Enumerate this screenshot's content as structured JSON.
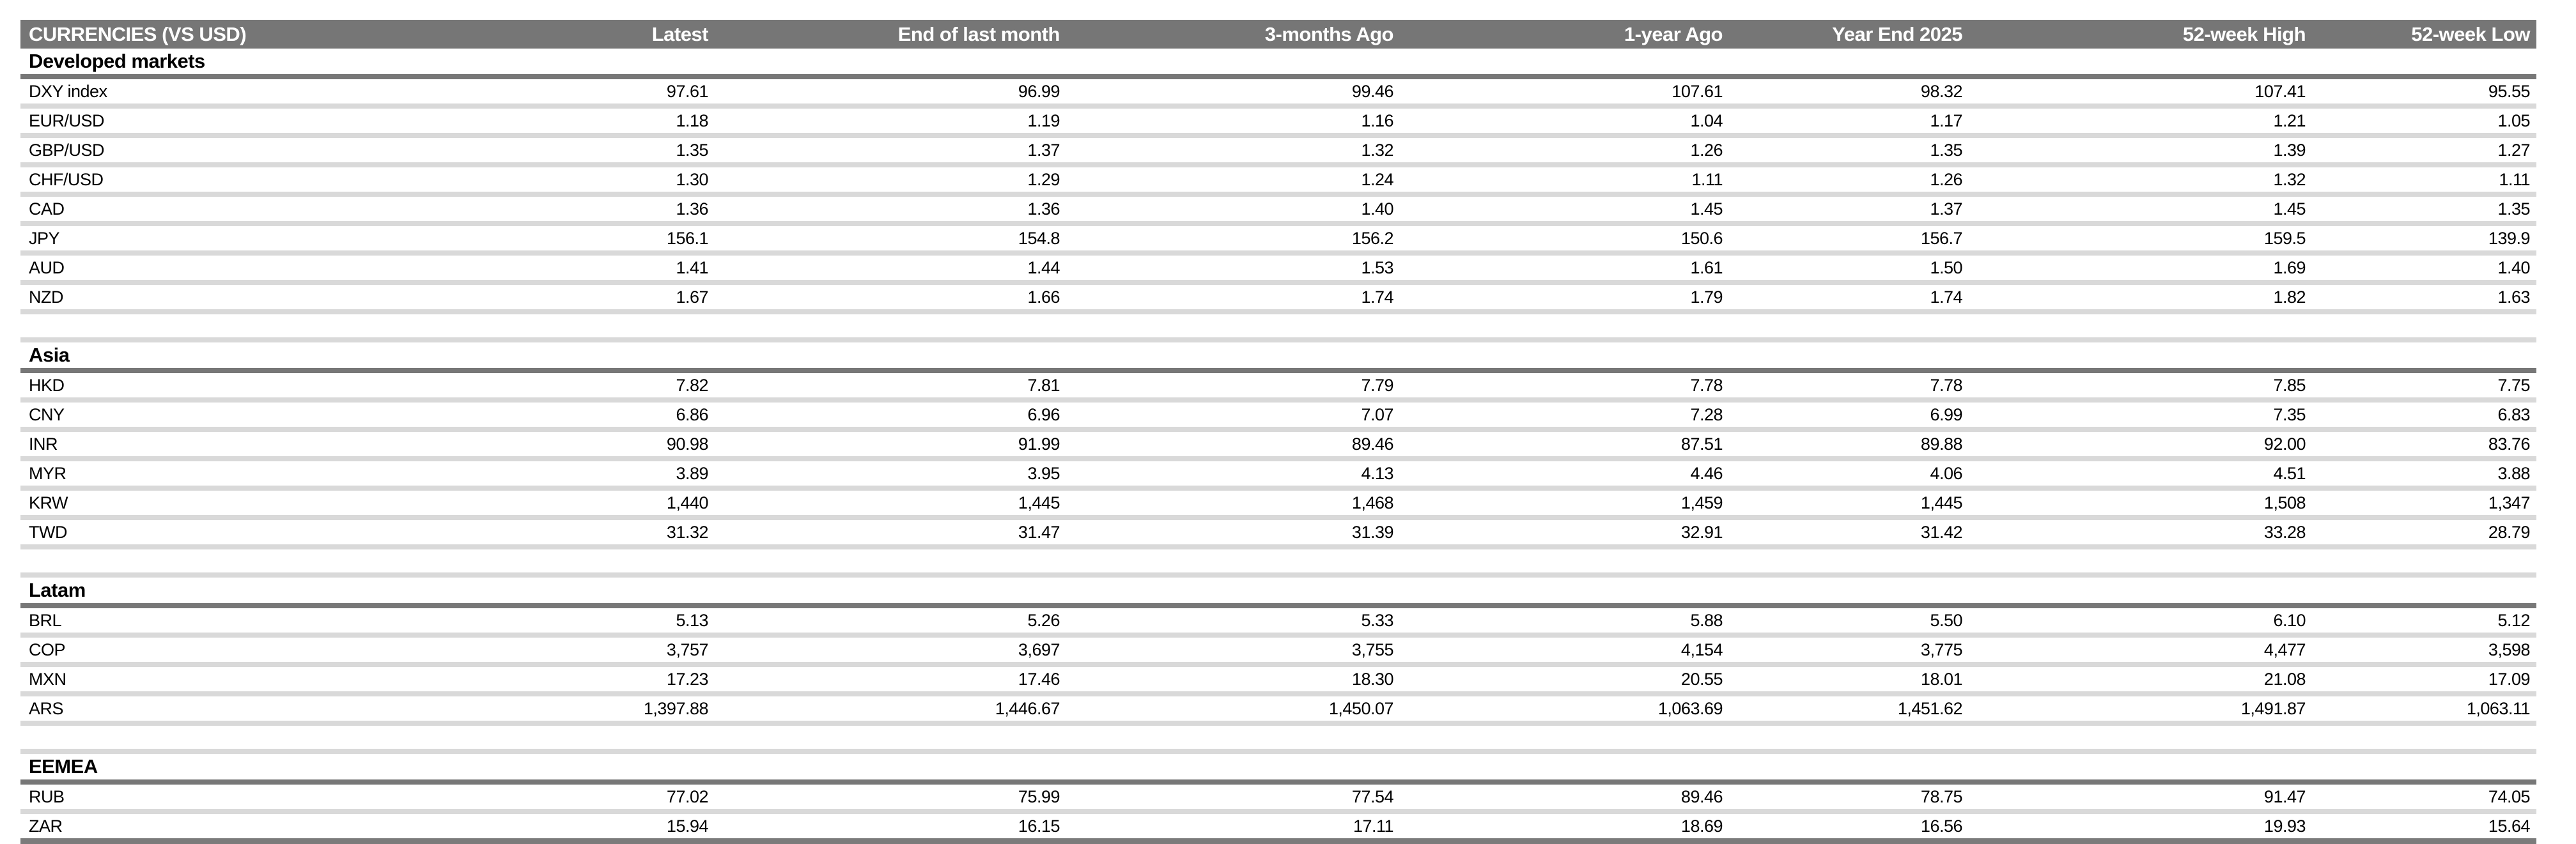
{
  "colors": {
    "header_bg": "#767676",
    "header_text": "#ffffff",
    "section_underline": "#777777",
    "row_separator": "#d9d9d9",
    "table_bottom_border": "#7b7b7b",
    "cell_text": "#000000"
  },
  "table": {
    "title": "CURRENCIES (VS USD)",
    "columns": [
      "Latest",
      "End of last month",
      "3-months Ago",
      "1-year Ago",
      "Year End 2025",
      "52-week High",
      "52-week Low"
    ],
    "sections": [
      {
        "name": "Developed markets",
        "rows": [
          {
            "label": "DXY index",
            "values": [
              "97.61",
              "96.99",
              "99.46",
              "107.61",
              "98.32",
              "107.41",
              "95.55"
            ]
          },
          {
            "label": "EUR/USD",
            "values": [
              "1.18",
              "1.19",
              "1.16",
              "1.04",
              "1.17",
              "1.21",
              "1.05"
            ]
          },
          {
            "label": "GBP/USD",
            "values": [
              "1.35",
              "1.37",
              "1.32",
              "1.26",
              "1.35",
              "1.39",
              "1.27"
            ]
          },
          {
            "label": "CHF/USD",
            "values": [
              "1.30",
              "1.29",
              "1.24",
              "1.11",
              "1.26",
              "1.32",
              "1.11"
            ]
          },
          {
            "label": "CAD",
            "values": [
              "1.36",
              "1.36",
              "1.40",
              "1.45",
              "1.37",
              "1.45",
              "1.35"
            ]
          },
          {
            "label": "JPY",
            "values": [
              "156.1",
              "154.8",
              "156.2",
              "150.6",
              "156.7",
              "159.5",
              "139.9"
            ]
          },
          {
            "label": "AUD",
            "values": [
              "1.41",
              "1.44",
              "1.53",
              "1.61",
              "1.50",
              "1.69",
              "1.40"
            ]
          },
          {
            "label": "NZD",
            "values": [
              "1.67",
              "1.66",
              "1.74",
              "1.79",
              "1.74",
              "1.82",
              "1.63"
            ]
          }
        ]
      },
      {
        "name": "Asia",
        "rows": [
          {
            "label": "HKD",
            "values": [
              "7.82",
              "7.81",
              "7.79",
              "7.78",
              "7.78",
              "7.85",
              "7.75"
            ]
          },
          {
            "label": "CNY",
            "values": [
              "6.86",
              "6.96",
              "7.07",
              "7.28",
              "6.99",
              "7.35",
              "6.83"
            ]
          },
          {
            "label": "INR",
            "values": [
              "90.98",
              "91.99",
              "89.46",
              "87.51",
              "89.88",
              "92.00",
              "83.76"
            ]
          },
          {
            "label": "MYR",
            "values": [
              "3.89",
              "3.95",
              "4.13",
              "4.46",
              "4.06",
              "4.51",
              "3.88"
            ]
          },
          {
            "label": "KRW",
            "values": [
              "1,440",
              "1,445",
              "1,468",
              "1,459",
              "1,445",
              "1,508",
              "1,347"
            ]
          },
          {
            "label": "TWD",
            "values": [
              "31.32",
              "31.47",
              "31.39",
              "32.91",
              "31.42",
              "33.28",
              "28.79"
            ]
          }
        ]
      },
      {
        "name": "Latam",
        "rows": [
          {
            "label": "BRL",
            "values": [
              "5.13",
              "5.26",
              "5.33",
              "5.88",
              "5.50",
              "6.10",
              "5.12"
            ]
          },
          {
            "label": "COP",
            "values": [
              "3,757",
              "3,697",
              "3,755",
              "4,154",
              "3,775",
              "4,477",
              "3,598"
            ]
          },
          {
            "label": "MXN",
            "values": [
              "17.23",
              "17.46",
              "18.30",
              "20.55",
              "18.01",
              "21.08",
              "17.09"
            ]
          },
          {
            "label": "ARS",
            "values": [
              "1,397.88",
              "1,446.67",
              "1,450.07",
              "1,063.69",
              "1,451.62",
              "1,491.87",
              "1,063.11"
            ]
          }
        ]
      },
      {
        "name": "EEMEA",
        "rows": [
          {
            "label": "RUB",
            "values": [
              "77.02",
              "75.99",
              "77.54",
              "89.46",
              "78.75",
              "91.47",
              "74.05"
            ]
          },
          {
            "label": "ZAR",
            "values": [
              "15.94",
              "16.15",
              "17.11",
              "18.69",
              "16.56",
              "19.93",
              "15.64"
            ]
          }
        ]
      }
    ]
  }
}
